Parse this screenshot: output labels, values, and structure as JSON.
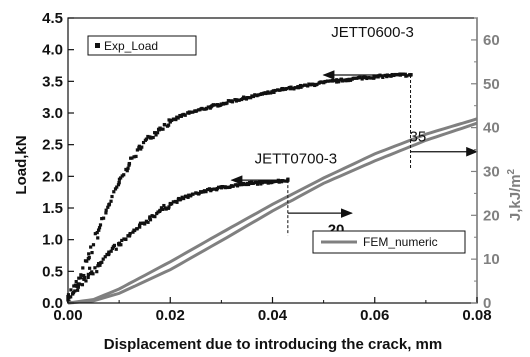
{
  "chart_data": {
    "type": "scatter",
    "xlabel": "Displacement due to introducing the crack, mm",
    "ylabel_left": "Load,kN",
    "ylabel_right": "J,kJ/m",
    "ylabel_right_sup": "2",
    "xlim": [
      0,
      0.08
    ],
    "ylim_left": [
      0,
      4.5
    ],
    "ylim_right": [
      0,
      65
    ],
    "x_ticks": [
      "0.00",
      "0.02",
      "0.04",
      "0.06",
      "0.08"
    ],
    "y_left_ticks": [
      "0.0",
      "0.5",
      "1.0",
      "1.5",
      "2.0",
      "2.5",
      "3.0",
      "3.5",
      "4.0",
      "4.5"
    ],
    "y_right_ticks": [
      "0",
      "10",
      "20",
      "30",
      "40",
      "50",
      "60"
    ],
    "legend": [
      {
        "label": "Exp_Load",
        "marker": "square",
        "color": "#111111",
        "position": "top-left"
      },
      {
        "label": "FEM_numeric",
        "marker": "line",
        "color": "#808080",
        "position": "bottom-right"
      }
    ],
    "annotations": [
      {
        "text": "JETT0600-3",
        "x": 0.0515,
        "y": 4.2
      },
      {
        "text": "JETT0700-3",
        "x": 0.0365,
        "y": 2.2
      },
      {
        "text": "35",
        "x": 0.0668,
        "y": 2.55,
        "color": "#808080"
      },
      {
        "text": "20",
        "x": 0.0508,
        "y": 1.08,
        "color": "#808080"
      }
    ],
    "series": [
      {
        "name": "Exp_Load",
        "axis": "left",
        "specimen": "JETT0600-3",
        "x": [
          0.0,
          0.002,
          0.004,
          0.006,
          0.008,
          0.01,
          0.012,
          0.014,
          0.016,
          0.018,
          0.02,
          0.022,
          0.025,
          0.028,
          0.03,
          0.032,
          0.035,
          0.038,
          0.04,
          0.042,
          0.045,
          0.048,
          0.05,
          0.053,
          0.055,
          0.058,
          0.06,
          0.063,
          0.065,
          0.067
        ],
        "y": [
          0.1,
          0.3,
          0.7,
          1.15,
          1.55,
          1.9,
          2.2,
          2.45,
          2.62,
          2.76,
          2.86,
          2.95,
          3.03,
          3.1,
          3.14,
          3.19,
          3.24,
          3.3,
          3.33,
          3.37,
          3.41,
          3.45,
          3.48,
          3.51,
          3.53,
          3.56,
          3.57,
          3.59,
          3.6,
          3.6
        ]
      },
      {
        "name": "Exp_Load",
        "axis": "left",
        "specimen": "JETT0700-3",
        "x": [
          0.0,
          0.002,
          0.004,
          0.006,
          0.008,
          0.01,
          0.012,
          0.014,
          0.016,
          0.018,
          0.02,
          0.022,
          0.024,
          0.026,
          0.028,
          0.03,
          0.032,
          0.034,
          0.036,
          0.038,
          0.04,
          0.042,
          0.043
        ],
        "y": [
          0.05,
          0.25,
          0.45,
          0.62,
          0.78,
          0.92,
          1.06,
          1.2,
          1.34,
          1.46,
          1.56,
          1.64,
          1.7,
          1.75,
          1.79,
          1.82,
          1.85,
          1.87,
          1.89,
          1.9,
          1.92,
          1.93,
          1.94
        ]
      },
      {
        "name": "FEM_numeric",
        "axis": "right",
        "specimen": "JETT0600-3",
        "x": [
          0.0,
          0.005,
          0.01,
          0.02,
          0.03,
          0.04,
          0.05,
          0.06,
          0.07,
          0.08
        ],
        "y": [
          0,
          0.5,
          2.2,
          7.6,
          14.2,
          21.0,
          27.3,
          32.4,
          37.1,
          41.0
        ]
      },
      {
        "name": "FEM_numeric",
        "axis": "right",
        "specimen": "JETT0700-3",
        "x": [
          0.0,
          0.005,
          0.01,
          0.02,
          0.03,
          0.04,
          0.05,
          0.06,
          0.07,
          0.08
        ],
        "y": [
          0,
          0.8,
          3.2,
          9.4,
          16.0,
          22.5,
          28.5,
          34.0,
          38.5,
          42.0
        ]
      }
    ],
    "markers": [
      {
        "x": 0.067,
        "y_left_from": 3.6,
        "y_right_to": 35
      },
      {
        "x": 0.043,
        "y_left_from": 1.94,
        "y_right_to": 20
      }
    ],
    "arrows": [
      {
        "from": [
          0.0655,
          3.6
        ],
        "to": [
          0.05,
          3.6
        ],
        "axis": "left"
      },
      {
        "from": [
          0.067,
          34.5
        ],
        "to": [
          0.08,
          34.5
        ],
        "axis": "right"
      },
      {
        "from": [
          0.042,
          1.94
        ],
        "to": [
          0.032,
          1.94
        ],
        "axis": "left"
      },
      {
        "from": [
          0.043,
          20.5
        ],
        "to": [
          0.0555,
          20.5
        ],
        "axis": "right"
      }
    ]
  }
}
